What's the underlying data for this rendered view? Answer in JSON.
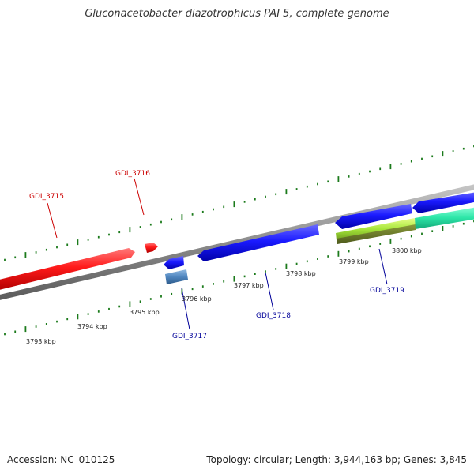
{
  "title": "Gluconacetobacter diazotrophicus PAI 5, complete genome",
  "accession": "Accession: NC_010125",
  "summary": "Topology: circular; Length: 3,944,163 bp; Genes: 3,845",
  "colors": {
    "forward_gene": "#ff1a1a",
    "reverse_gene": "#1a1aff",
    "tick": "#1b7a1b",
    "backbone": "#8c8c8c",
    "forward_label": "#cc0000",
    "reverse_label": "#000099"
  },
  "scale_labels": [
    "3793 kbp",
    "3794 kbp",
    "3795 kbp",
    "3796 kbp",
    "3797 kbp",
    "3798 kbp",
    "3799 kbp",
    "3800 kbp"
  ],
  "genes": {
    "gdi_3715": "GDI_3715",
    "gdi_3716": "GDI_3716",
    "gdi_3717": "GDI_3717",
    "gdi_3718": "GDI_3718",
    "gdi_3719": "GDI_3719"
  }
}
